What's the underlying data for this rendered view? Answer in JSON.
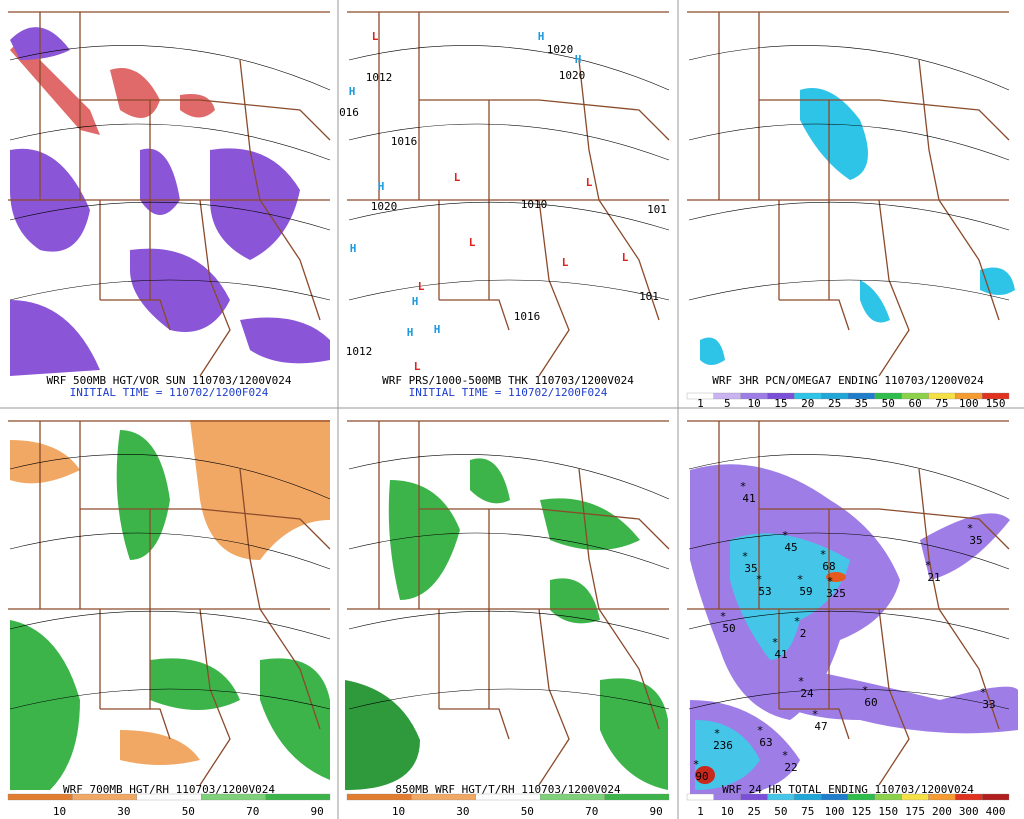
{
  "panels": [
    {
      "caption": "WRF 500MB HGT/VOR SUN 110703/1200V024",
      "subcaption": "INITIAL TIME = 110702/1200F024"
    },
    {
      "caption": "WRF PRS/1000-500MB THK 110703/1200V024",
      "subcaption": "INITIAL TIME = 110702/1200F024",
      "labels": [
        "L",
        "L",
        "L",
        "L",
        "L",
        "L",
        "L",
        "L",
        "H",
        "H",
        "H",
        "H",
        "H",
        "H",
        "H",
        "H",
        "1012",
        "016",
        "1016",
        "1020",
        "1010",
        "1016",
        "1012",
        "1020",
        "1020",
        "101",
        "101"
      ]
    },
    {
      "caption": "WRF 3HR PCN/OMEGA7 ENDING 110703/1200V024",
      "colorbar": [
        "1",
        "5",
        "10",
        "15",
        "20",
        "25",
        "35",
        "50",
        "60",
        "75",
        "100",
        "150"
      ]
    },
    {
      "caption": "WRF 700MB HGT/RH 110703/1200V024",
      "colorbar": [
        "10",
        "30",
        "50",
        "70",
        "90"
      ]
    },
    {
      "caption": "850MB WRF HGT/T/RH 110703/1200V024",
      "colorbar": [
        "10",
        "30",
        "50",
        "70",
        "90"
      ]
    },
    {
      "caption": "WRF 24 HR TOTAL ENDING 110703/1200V024",
      "labels": [
        "41",
        "35",
        "45",
        "68",
        "53",
        "59",
        "325",
        "50",
        "2",
        "41",
        "24",
        "60",
        "35",
        "21",
        "33",
        "63",
        "236",
        "22",
        "47",
        "90"
      ],
      "colorbar": [
        "1",
        "10",
        "25",
        "50",
        "75",
        "100",
        "125",
        "150",
        "175",
        "200",
        "300",
        "400"
      ]
    }
  ]
}
